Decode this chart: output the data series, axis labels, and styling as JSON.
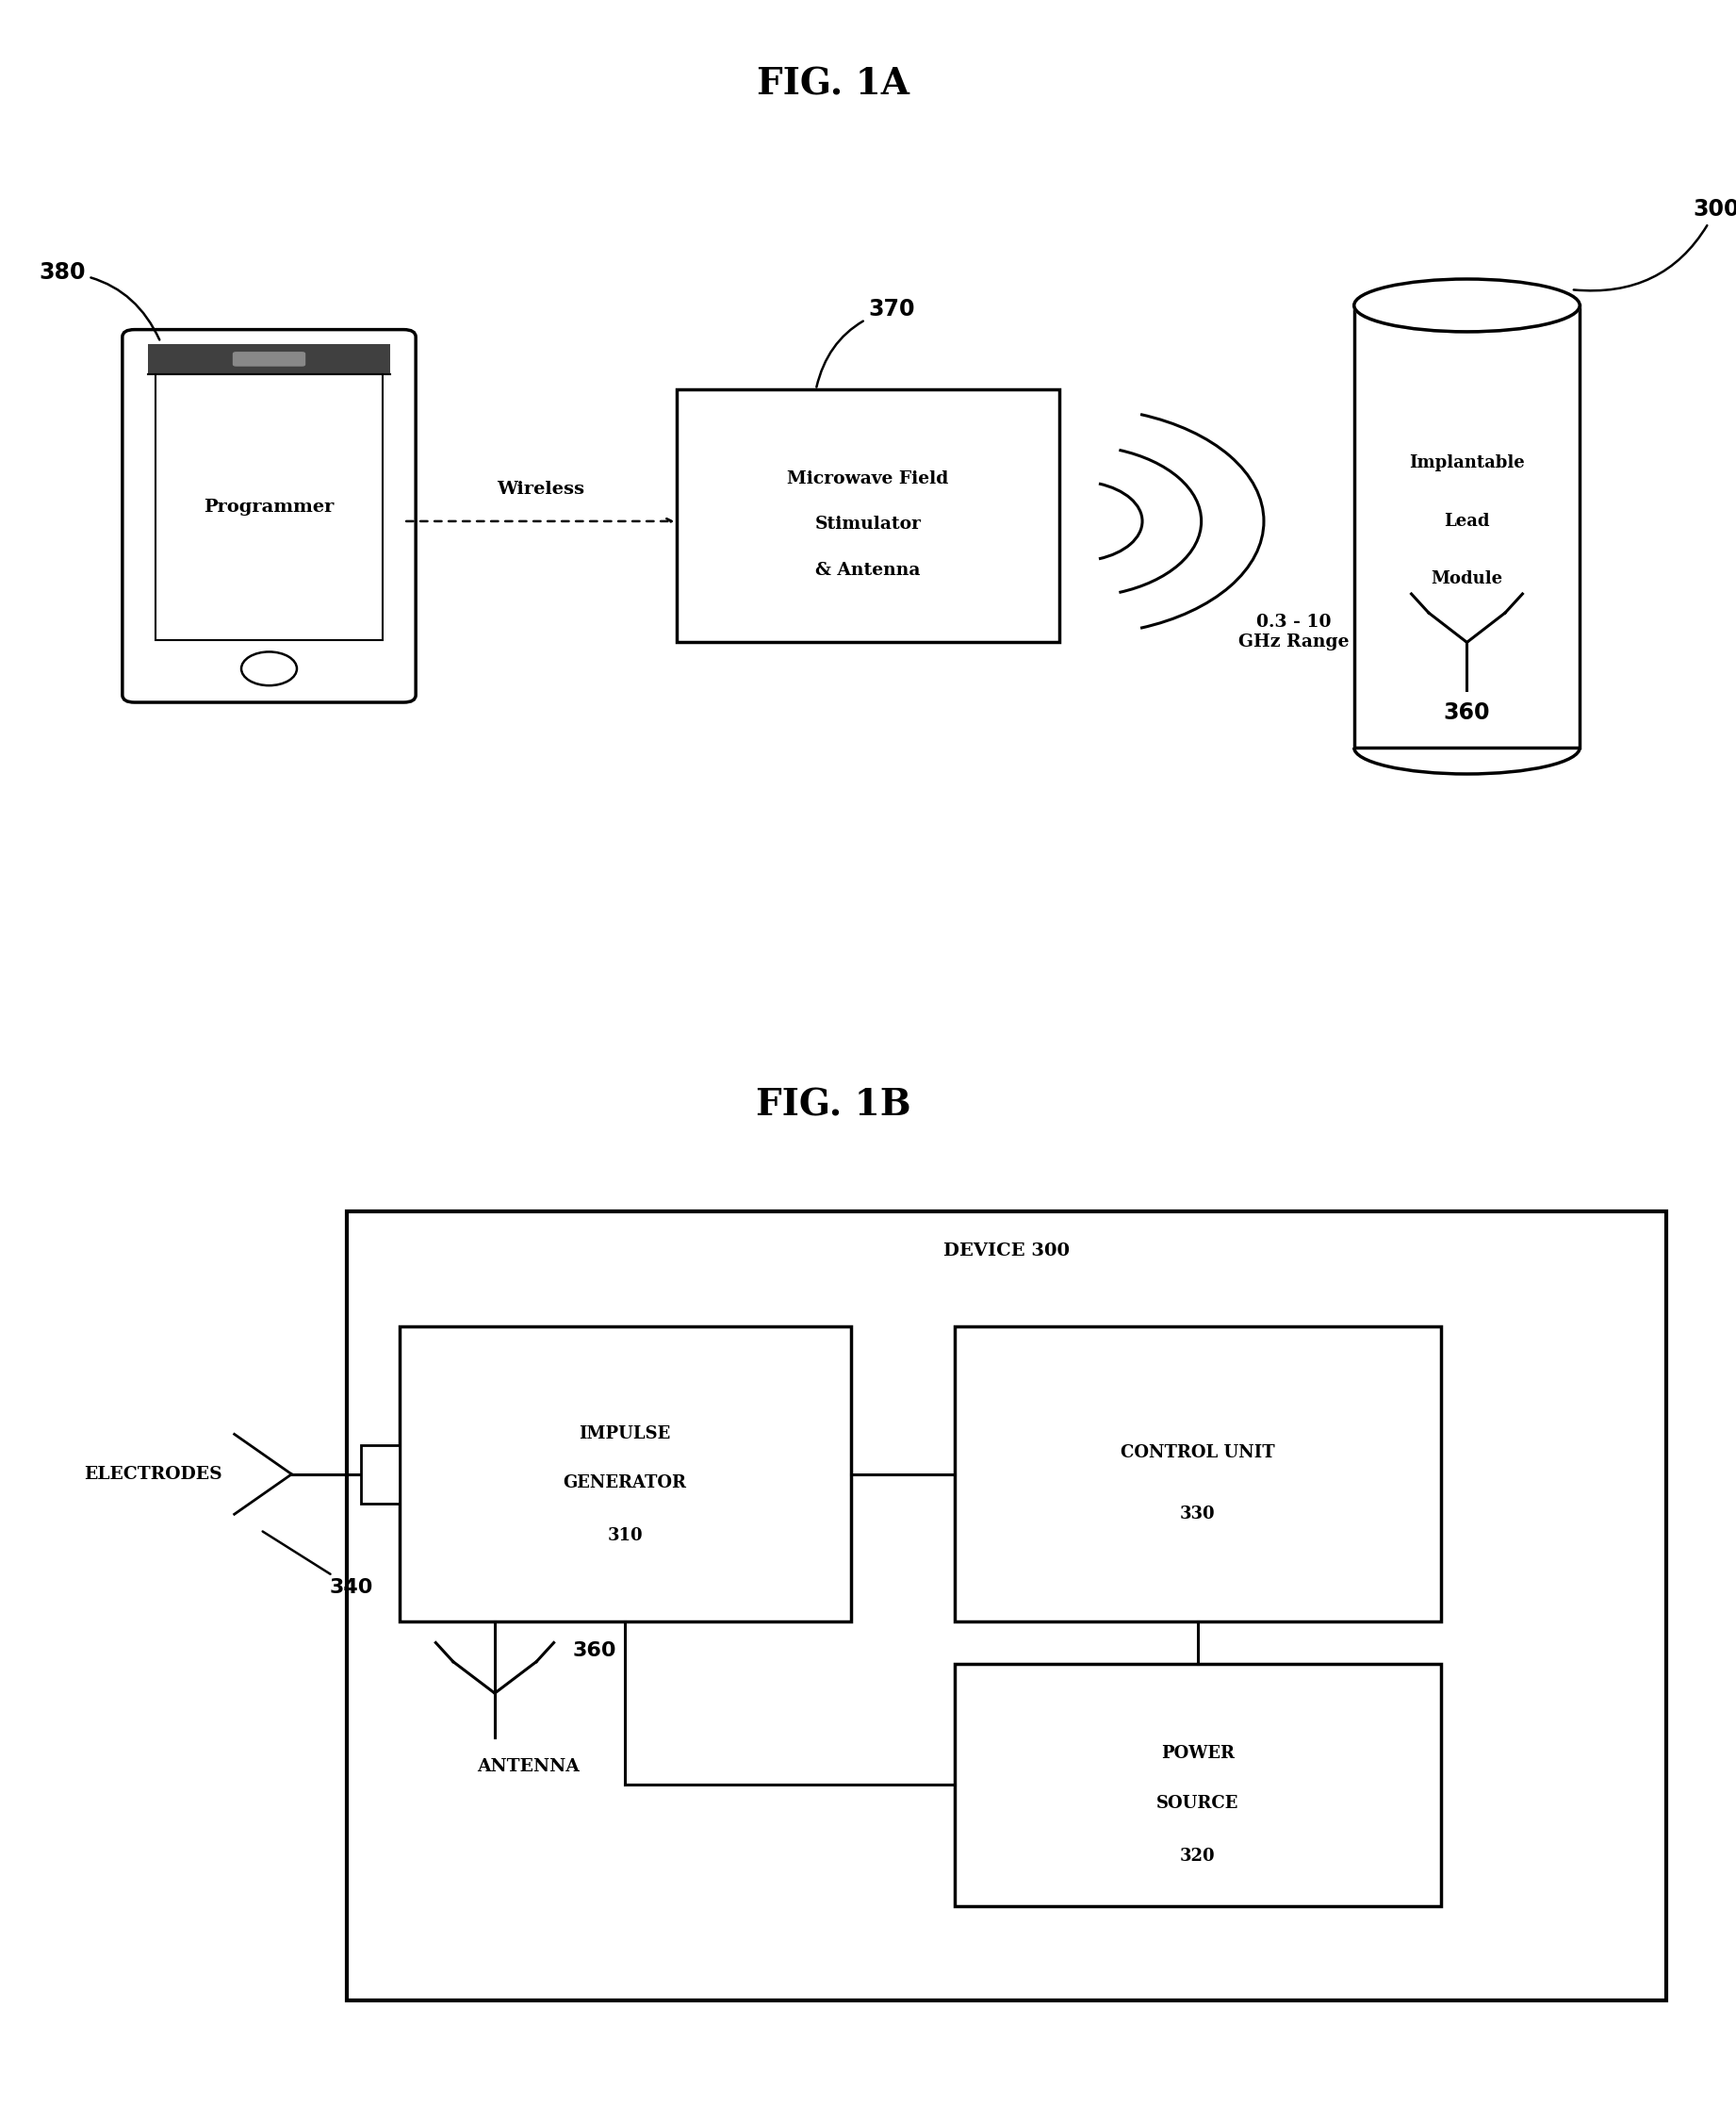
{
  "bg_color": "#ffffff",
  "fig_width": 18.42,
  "fig_height": 22.34,
  "fig1a_title": "FIG. 1A",
  "fig1b_title": "FIG. 1B",
  "label_380": "380",
  "label_370": "370",
  "label_300": "300",
  "label_360_1a": "360",
  "label_360_1b": "360",
  "label_340": "340",
  "programmer_text": "Programmer",
  "wireless_text": "Wireless",
  "stimulator_line1": "Microwave Field",
  "stimulator_line2": "Stimulator",
  "stimulator_line3": "& Antenna",
  "implantable_line1": "Implantable",
  "implantable_line2": "Lead",
  "implantable_line3": "Module",
  "ghz_text": "0.3 - 10\nGHz Range",
  "device_text": "DEVICE 300",
  "electrodes_text": "ELECTRODES",
  "impulse_line1": "IMPULSE",
  "impulse_line2": "GENERATOR",
  "impulse_line3": "310",
  "control_line1": "CONTROL UNIT",
  "control_line2": "330",
  "power_line1": "POWER",
  "power_line2": "SOURCE",
  "power_line3": "320",
  "antenna_text": "ANTENNA"
}
